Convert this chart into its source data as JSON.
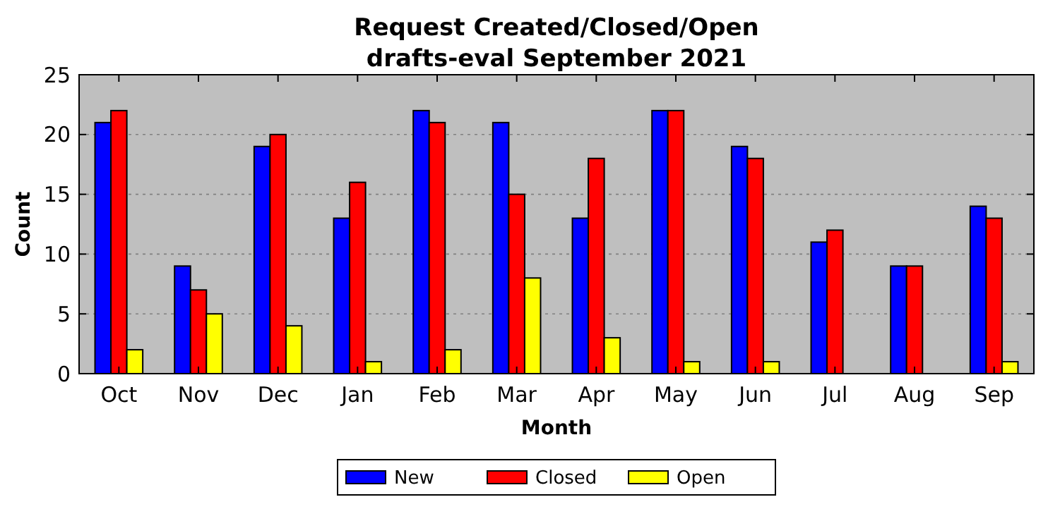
{
  "chart_data": {
    "type": "bar",
    "title": "Request Created/Closed/Open",
    "subtitle": "drafts-eval September 2021",
    "xlabel": "Month",
    "ylabel": "Count",
    "categories": [
      "Oct",
      "Nov",
      "Dec",
      "Jan",
      "Feb",
      "Mar",
      "Apr",
      "May",
      "Jun",
      "Jul",
      "Aug",
      "Sep"
    ],
    "series": [
      {
        "name": "New",
        "color": "#0000ff",
        "values": [
          21,
          9,
          19,
          13,
          22,
          21,
          13,
          22,
          19,
          11,
          9,
          14
        ]
      },
      {
        "name": "Closed",
        "color": "#ff0000",
        "values": [
          22,
          7,
          20,
          16,
          21,
          15,
          18,
          22,
          18,
          12,
          9,
          13
        ]
      },
      {
        "name": "Open",
        "color": "#ffff00",
        "values": [
          2,
          5,
          4,
          1,
          2,
          8,
          3,
          1,
          1,
          0,
          0,
          1
        ]
      }
    ],
    "ylim": [
      0,
      25
    ],
    "yticks": [
      0,
      5,
      10,
      15,
      20,
      25
    ],
    "grid": "y",
    "legend": "bottom"
  }
}
